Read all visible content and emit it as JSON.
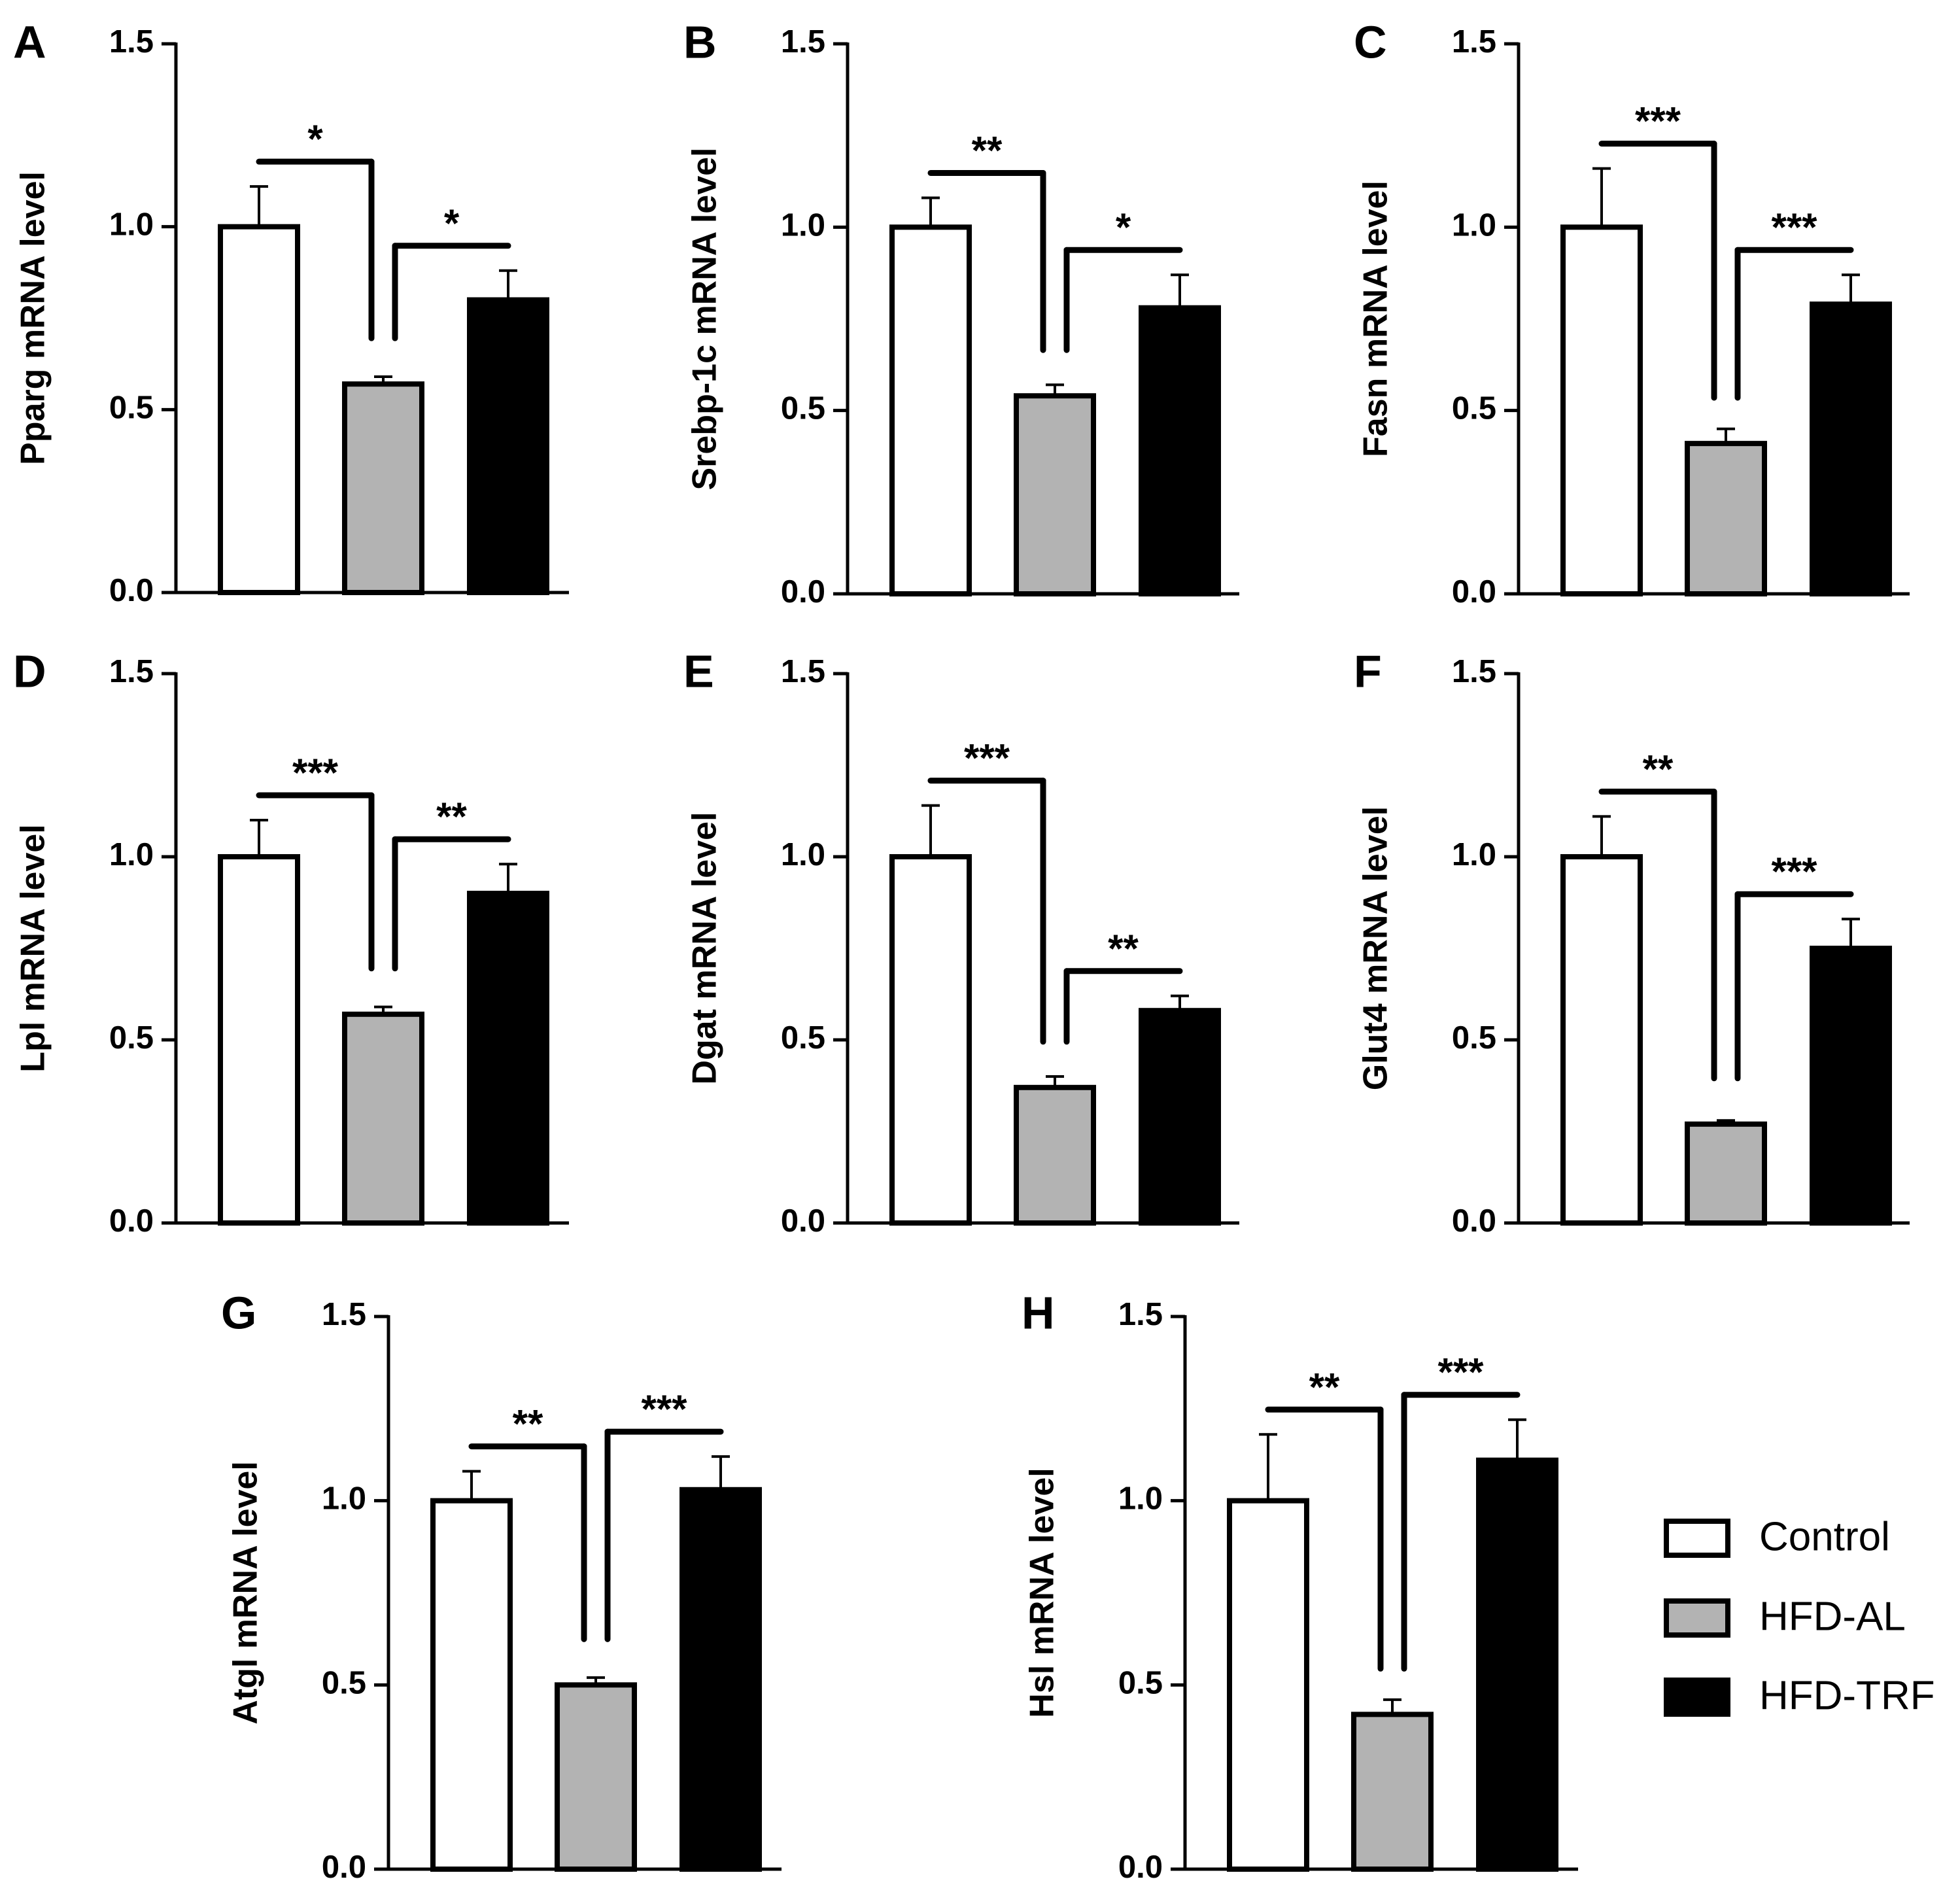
{
  "legend": [
    {
      "name": "Control",
      "fill": "#ffffff"
    },
    {
      "name": "HFD-AL",
      "fill": "#b3b3b3"
    },
    {
      "name": "HFD-TRF",
      "fill": "#000000"
    }
  ],
  "colors": {
    "axis": "#000000",
    "control": "#ffffff",
    "hfd_al": "#b3b3b3",
    "hfd_trf": "#000000"
  },
  "chart_data": [
    {
      "type": "bar",
      "panel": "A",
      "ylabel": "Pparg mRNA level",
      "categories": [
        "Control",
        "HFD-AL",
        "HFD-TRF"
      ],
      "values": [
        1.0,
        0.57,
        0.8
      ],
      "errors": [
        0.11,
        0.02,
        0.08
      ],
      "ylim": [
        0,
        1.5
      ],
      "yticks": [
        "0.0",
        "0.5",
        "1.0",
        "1.5"
      ],
      "comparisons": [
        {
          "between": [
            "Control",
            "HFD-AL"
          ],
          "label": "*"
        },
        {
          "between": [
            "HFD-AL",
            "HFD-TRF"
          ],
          "label": "*"
        }
      ]
    },
    {
      "type": "bar",
      "panel": "B",
      "ylabel": "Srebp-1c mRNA level",
      "categories": [
        "Control",
        "HFD-AL",
        "HFD-TRF"
      ],
      "values": [
        1.0,
        0.54,
        0.78
      ],
      "errors": [
        0.08,
        0.03,
        0.09
      ],
      "ylim": [
        0,
        1.5
      ],
      "yticks": [
        "0.0",
        "0.5",
        "1.0",
        "1.5"
      ],
      "comparisons": [
        {
          "between": [
            "Control",
            "HFD-AL"
          ],
          "label": "**"
        },
        {
          "between": [
            "HFD-AL",
            "HFD-TRF"
          ],
          "label": "*"
        }
      ]
    },
    {
      "type": "bar",
      "panel": "C",
      "ylabel": "Fasn mRNA level",
      "categories": [
        "Control",
        "HFD-AL",
        "HFD-TRF"
      ],
      "values": [
        1.0,
        0.41,
        0.79
      ],
      "errors": [
        0.16,
        0.04,
        0.08
      ],
      "ylim": [
        0,
        1.5
      ],
      "yticks": [
        "0.0",
        "0.5",
        "1.0",
        "1.5"
      ],
      "comparisons": [
        {
          "between": [
            "Control",
            "HFD-AL"
          ],
          "label": "***"
        },
        {
          "between": [
            "HFD-AL",
            "HFD-TRF"
          ],
          "label": "***"
        }
      ]
    },
    {
      "type": "bar",
      "panel": "D",
      "ylabel": "Lpl mRNA level",
      "categories": [
        "Control",
        "HFD-AL",
        "HFD-TRF"
      ],
      "values": [
        1.0,
        0.57,
        0.9
      ],
      "errors": [
        0.1,
        0.02,
        0.08
      ],
      "ylim": [
        0,
        1.5
      ],
      "yticks": [
        "0.0",
        "0.5",
        "1.0",
        "1.5"
      ],
      "comparisons": [
        {
          "between": [
            "Control",
            "HFD-AL"
          ],
          "label": "***"
        },
        {
          "between": [
            "HFD-AL",
            "HFD-TRF"
          ],
          "label": "**"
        }
      ]
    },
    {
      "type": "bar",
      "panel": "E",
      "ylabel": "Dgat mRNA level",
      "categories": [
        "Control",
        "HFD-AL",
        "HFD-TRF"
      ],
      "values": [
        1.0,
        0.37,
        0.58
      ],
      "errors": [
        0.14,
        0.03,
        0.04
      ],
      "ylim": [
        0,
        1.5
      ],
      "yticks": [
        "0.0",
        "0.5",
        "1.0",
        "1.5"
      ],
      "comparisons": [
        {
          "between": [
            "Control",
            "HFD-AL"
          ],
          "label": "***"
        },
        {
          "between": [
            "HFD-AL",
            "HFD-TRF"
          ],
          "label": "**"
        }
      ]
    },
    {
      "type": "bar",
      "panel": "F",
      "ylabel": "Glut4 mRNA level",
      "categories": [
        "Control",
        "HFD-AL",
        "HFD-TRF"
      ],
      "values": [
        1.0,
        0.27,
        0.75
      ],
      "errors": [
        0.11,
        0.01,
        0.08
      ],
      "ylim": [
        0,
        1.5
      ],
      "yticks": [
        "0.0",
        "0.5",
        "1.0",
        "1.5"
      ],
      "comparisons": [
        {
          "between": [
            "Control",
            "HFD-AL"
          ],
          "label": "**"
        },
        {
          "between": [
            "HFD-AL",
            "HFD-TRF"
          ],
          "label": "***"
        }
      ]
    },
    {
      "type": "bar",
      "panel": "G",
      "ylabel": "Atgl mRNA level",
      "categories": [
        "Control",
        "HFD-AL",
        "HFD-TRF"
      ],
      "values": [
        1.0,
        0.5,
        1.03
      ],
      "errors": [
        0.08,
        0.02,
        0.09
      ],
      "ylim": [
        0,
        1.5
      ],
      "yticks": [
        "0.0",
        "0.5",
        "1.0",
        "1.5"
      ],
      "comparisons": [
        {
          "between": [
            "Control",
            "HFD-AL"
          ],
          "label": "**"
        },
        {
          "between": [
            "HFD-AL",
            "HFD-TRF"
          ],
          "label": "***"
        }
      ]
    },
    {
      "type": "bar",
      "panel": "H",
      "ylabel": "Hsl mRNA level",
      "categories": [
        "Control",
        "HFD-AL",
        "HFD-TRF"
      ],
      "values": [
        1.0,
        0.42,
        1.11
      ],
      "errors": [
        0.18,
        0.04,
        0.11
      ],
      "ylim": [
        0,
        1.5
      ],
      "yticks": [
        "0.0",
        "0.5",
        "1.0",
        "1.5"
      ],
      "comparisons": [
        {
          "between": [
            "Control",
            "HFD-AL"
          ],
          "label": "**"
        },
        {
          "between": [
            "HFD-AL",
            "HFD-TRF"
          ],
          "label": "***"
        }
      ]
    }
  ]
}
